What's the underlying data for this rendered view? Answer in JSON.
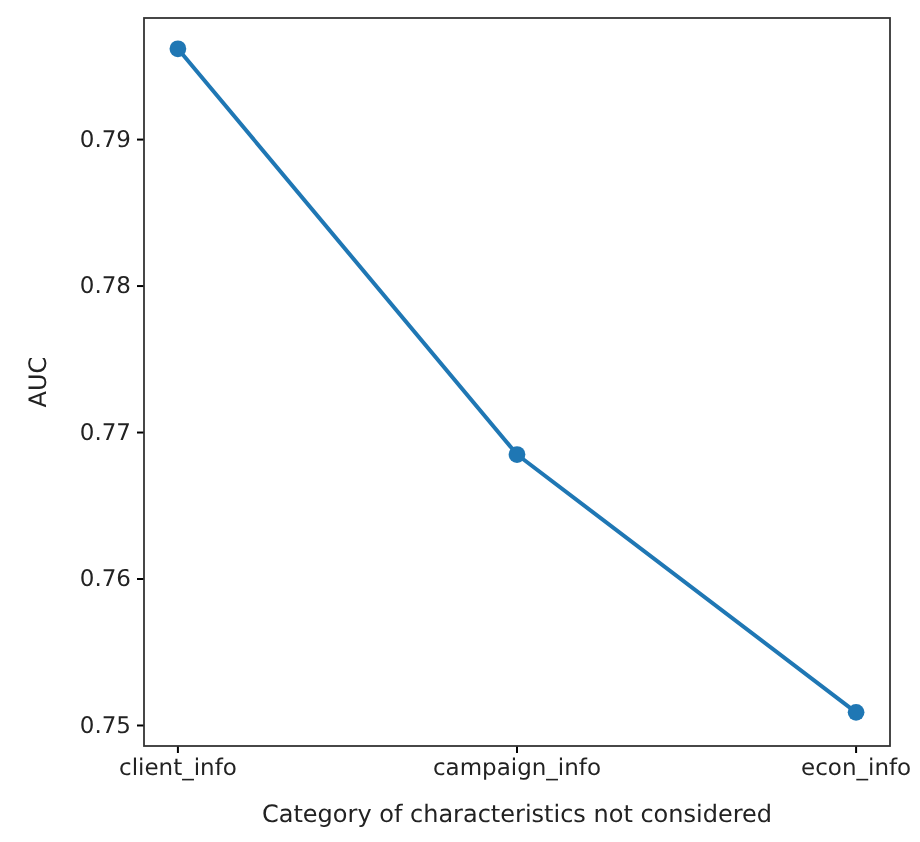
{
  "chart_data": {
    "type": "line",
    "xlabel": "Category of characteristics not considered",
    "ylabel": "AUC",
    "categories": [
      "client_info",
      "campaign_info",
      "econ_info"
    ],
    "series": [
      {
        "color": "#1f77b4",
        "values": [
          0.7962,
          0.7685,
          0.7509
        ]
      }
    ],
    "ylim": [
      0.7486,
      0.7983
    ],
    "yticks": [
      0.75,
      0.76,
      0.77,
      0.78,
      0.79
    ],
    "marker": "circle",
    "line_style": "solid",
    "grid": false
  }
}
